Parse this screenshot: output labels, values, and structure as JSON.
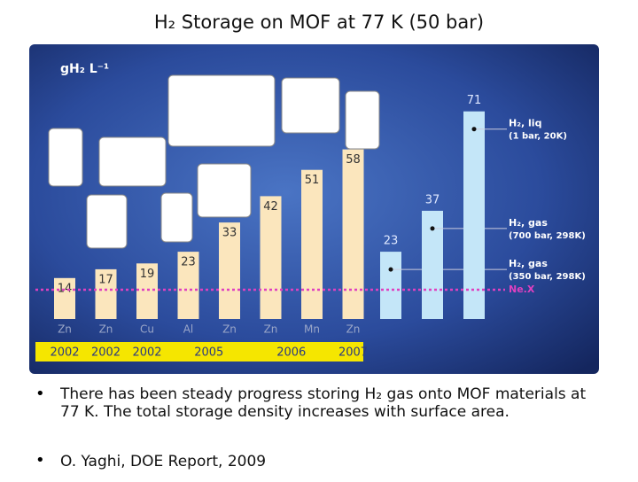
{
  "slide_title": "H₂ Storage on MOF at 77 K  (50 bar)",
  "bullets": [
    "There has been steady progress storing H₂ gas onto MOF materials at 77 K.  The total storage density increases with surface area.",
    "O. Yaghi, DOE Report,  2009"
  ],
  "chart_data": {
    "type": "bar",
    "y_label": "gH₂ L⁻¹",
    "categories": [
      "Zn",
      "Zn",
      "Cu",
      "Al",
      "Zn",
      "Zn",
      "Mn",
      "Zn"
    ],
    "values": [
      14,
      17,
      19,
      23,
      33,
      42,
      51,
      58
    ],
    "color": "#fbe6bd",
    "years": [
      {
        "label": "2002",
        "from": 0,
        "to": 0
      },
      {
        "label": "2002",
        "from": 1,
        "to": 1
      },
      {
        "label": "2002",
        "from": 2,
        "to": 2
      },
      {
        "label": "2005",
        "from": 3,
        "to": 4
      },
      {
        "label": "2006",
        "from": 5,
        "to": 6
      },
      {
        "label": "2007",
        "from": 7,
        "to": 7
      }
    ],
    "references": [
      {
        "values": 23,
        "label": "H₂, gas",
        "note": "(350 bar, 298K)"
      },
      {
        "values": 37,
        "label": "H₂, gas",
        "note": "(700 bar, 298K)"
      },
      {
        "values": 71,
        "label": "H₂, liq",
        "note": "(1 bar, 20K)"
      }
    ],
    "reference_color": "#c4e6f8",
    "target": {
      "label": "Ne.X",
      "value": 10
    },
    "ylim": [
      0,
      80
    ]
  }
}
